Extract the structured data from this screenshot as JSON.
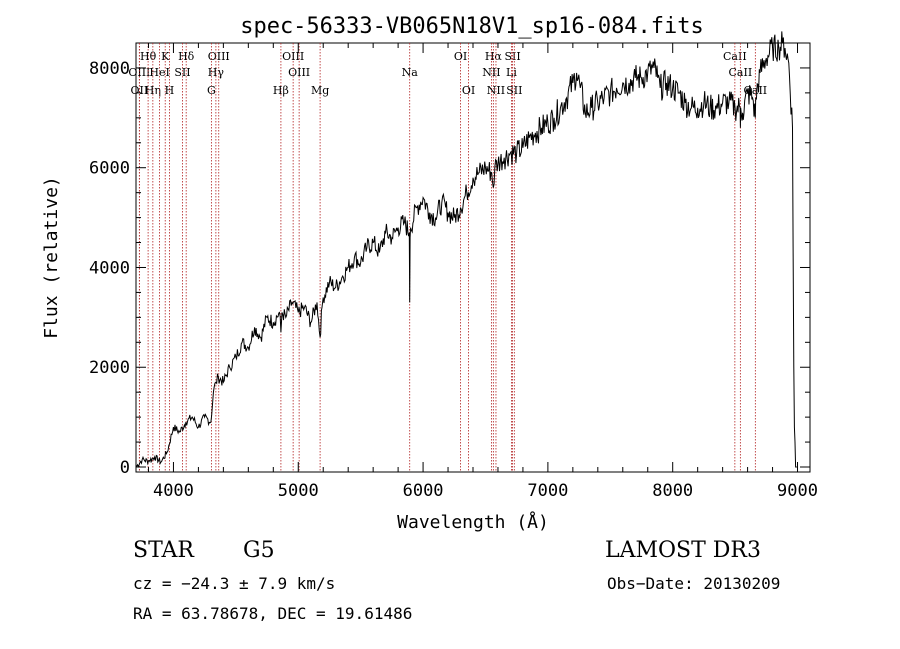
{
  "chart_data": {
    "type": "line",
    "title": "spec-56333-VB065N18V1_sp16-084.fits",
    "xlabel": "Wavelength (Å)",
    "ylabel": "Flux (relative)",
    "xlim": [
      3700,
      9100
    ],
    "ylim": [
      -100,
      8500
    ],
    "xticks": [
      4000,
      5000,
      6000,
      7000,
      8000,
      9000
    ],
    "yticks": [
      0,
      2000,
      4000,
      6000,
      8000
    ],
    "grid": false,
    "series": [
      {
        "name": "spectrum",
        "x": [
          3700,
          3750,
          3800,
          3850,
          3900,
          3950,
          4000,
          4050,
          4100,
          4150,
          4200,
          4250,
          4300,
          4320,
          4340,
          4360,
          4400,
          4450,
          4500,
          4550,
          4600,
          4650,
          4700,
          4750,
          4800,
          4850,
          4861,
          4870,
          4900,
          4950,
          5000,
          5050,
          5100,
          5150,
          5175,
          5190,
          5200,
          5250,
          5300,
          5350,
          5400,
          5450,
          5500,
          5550,
          5600,
          5650,
          5700,
          5750,
          5800,
          5850,
          5890,
          5893,
          5896,
          5900,
          5950,
          6000,
          6050,
          6100,
          6150,
          6200,
          6250,
          6300,
          6350,
          6400,
          6450,
          6500,
          6550,
          6563,
          6575,
          6600,
          6650,
          6700,
          6750,
          6800,
          6850,
          6900,
          6950,
          7000,
          7050,
          7100,
          7150,
          7200,
          7230,
          7260,
          7300,
          7350,
          7400,
          7450,
          7500,
          7550,
          7600,
          7650,
          7700,
          7750,
          7800,
          7850,
          7880,
          7900,
          7950,
          8000,
          8050,
          8100,
          8150,
          8200,
          8250,
          8300,
          8350,
          8400,
          8450,
          8500,
          8540,
          8542,
          8545,
          8560,
          8600,
          8640,
          8662,
          8665,
          8700,
          8750,
          8800,
          8850,
          8880,
          8900,
          8930,
          8960,
          8970,
          8975,
          8980,
          8985,
          8990,
          8995
        ],
        "values": [
          0,
          150,
          120,
          200,
          100,
          300,
          800,
          700,
          900,
          1000,
          800,
          1000,
          900,
          1500,
          1700,
          1800,
          1700,
          2000,
          2200,
          2500,
          2400,
          2800,
          2600,
          3000,
          2900,
          3100,
          2700,
          3100,
          3000,
          3300,
          3100,
          3200,
          2900,
          3300,
          2600,
          3200,
          3400,
          3700,
          3600,
          3800,
          4000,
          4200,
          4100,
          4400,
          4500,
          4300,
          4700,
          4600,
          4800,
          4900,
          4700,
          3300,
          4600,
          4800,
          5200,
          5400,
          5100,
          5000,
          5300,
          5100,
          5000,
          5200,
          5500,
          5800,
          5900,
          6000,
          5900,
          5600,
          6000,
          6100,
          6200,
          6300,
          6300,
          6400,
          6600,
          6700,
          6800,
          6900,
          7000,
          7200,
          7400,
          7700,
          7900,
          7600,
          7100,
          7200,
          7300,
          7400,
          7500,
          7600,
          7700,
          7700,
          7800,
          7800,
          7900,
          8000,
          7800,
          7600,
          7700,
          7600,
          7500,
          7300,
          7200,
          7200,
          7300,
          7200,
          7200,
          7300,
          7300,
          7200,
          7200,
          6800,
          7200,
          7100,
          7500,
          7400,
          7000,
          7400,
          7900,
          8200,
          8400,
          8400,
          8500,
          8400,
          8100,
          6800,
          2000,
          800,
          500,
          0,
          0,
          0
        ]
      }
    ],
    "lines": [
      {
        "label": "OIII",
        "x": 3727,
        "row": 2
      },
      {
        "label": "Hθ",
        "x": 3797,
        "row": 1
      },
      {
        "label": "OII",
        "x": 3727,
        "row": 3
      },
      {
        "label": "Hη",
        "x": 3835,
        "row": 3
      },
      {
        "label": "HeI",
        "x": 3889,
        "row": 2
      },
      {
        "label": "K",
        "x": 3934,
        "row": 1
      },
      {
        "label": "H",
        "x": 3968,
        "row": 3
      },
      {
        "label": "SII",
        "x": 4072,
        "row": 2
      },
      {
        "label": "Hδ",
        "x": 4102,
        "row": 1
      },
      {
        "label": "OIII",
        "x": 4363,
        "row": 1
      },
      {
        "label": "Hγ",
        "x": 4340,
        "row": 2
      },
      {
        "label": "G",
        "x": 4304,
        "row": 3
      },
      {
        "label": "Hβ",
        "x": 4861,
        "row": 3
      },
      {
        "label": "OIII",
        "x": 4959,
        "row": 1
      },
      {
        "label": "OIII",
        "x": 5007,
        "row": 2
      },
      {
        "label": "Mg",
        "x": 5175,
        "row": 3
      },
      {
        "label": "Na",
        "x": 5893,
        "row": 2
      },
      {
        "label": "OI",
        "x": 6300,
        "row": 1
      },
      {
        "label": "OI",
        "x": 6364,
        "row": 3
      },
      {
        "label": "Hα",
        "x": 6563,
        "row": 1
      },
      {
        "label": "NII",
        "x": 6548,
        "row": 2
      },
      {
        "label": "NII",
        "x": 6584,
        "row": 3
      },
      {
        "label": "SII",
        "x": 6717,
        "row": 1
      },
      {
        "label": "Li",
        "x": 6708,
        "row": 2
      },
      {
        "label": "SII",
        "x": 6731,
        "row": 3
      },
      {
        "label": "CaII",
        "x": 8498,
        "row": 1
      },
      {
        "label": "CaII",
        "x": 8542,
        "row": 2
      },
      {
        "label": "CaII",
        "x": 8662,
        "row": 3
      }
    ]
  },
  "info": {
    "class_label": "STAR",
    "subclass": "G5",
    "survey": "LAMOST DR3",
    "redshift": "cz = −24.3 ± 7.9 km/s",
    "obs_date": "Obs−Date: 20130209",
    "coords": "RA =  63.78678, DEC =  19.61486"
  }
}
